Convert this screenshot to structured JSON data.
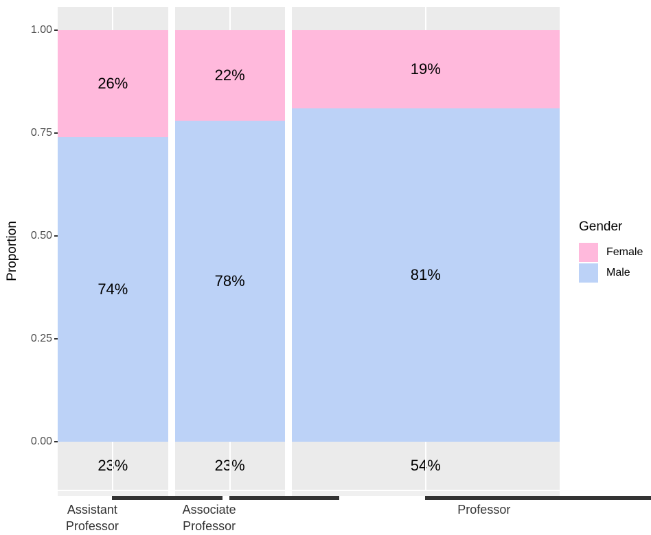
{
  "colors": {
    "female_pink": "#FFB9DC",
    "male_blue": "#BCD2F7",
    "panel_grey": "#EBEBEB",
    "panel_grey_light": "#F0F0F0",
    "gridline_white": "#FFFFFF",
    "axis_tick": "#333333",
    "y_axis_text": "#4D4D4D",
    "x_axis_text": "#333333",
    "label_black": "#000000"
  },
  "chart_data": {
    "type": "mosaic",
    "title": "",
    "xlabel": "",
    "ylabel": "Proportion",
    "ylim": [
      0,
      1
    ],
    "legend_position": "right",
    "grid": "ggplot-grey-panel",
    "y_ticks": [
      "1.00",
      "0.75",
      "0.50",
      "0.25",
      "0.00"
    ],
    "categories": [
      "Assistant\nProfessor",
      "Associate\nProfessor",
      "Professor"
    ],
    "column_width_pct": [
      23,
      23,
      54
    ],
    "column_width_prop_measured": [
      0.226,
      0.225,
      0.549
    ],
    "width_labels": [
      "23%",
      "23%",
      "54%"
    ],
    "series": [
      {
        "name": "Female",
        "values": [
          0.26,
          0.22,
          0.19
        ],
        "labels": [
          "26%",
          "22%",
          "19%"
        ],
        "color": "#FFB9DC"
      },
      {
        "name": "Male",
        "values": [
          0.74,
          0.78,
          0.81
        ],
        "labels": [
          "74%",
          "78%",
          "81%"
        ],
        "color": "#BCD2F7"
      }
    ],
    "legend": {
      "title": "Gender",
      "entries": [
        {
          "label": "Female",
          "color": "#FFB9DC"
        },
        {
          "label": "Male",
          "color": "#BCD2F7"
        }
      ]
    }
  }
}
